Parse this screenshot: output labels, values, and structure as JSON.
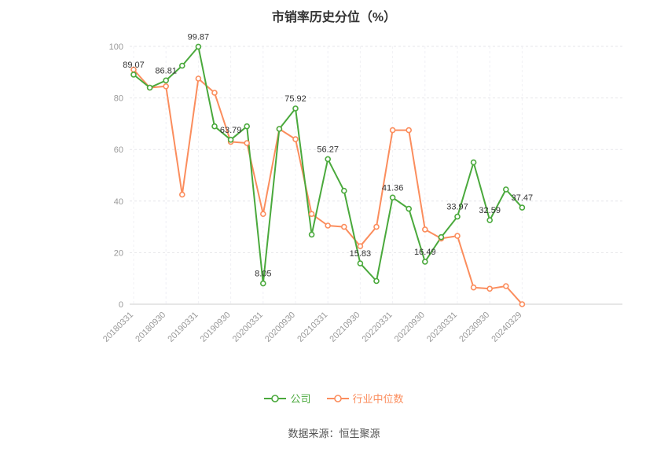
{
  "title": "市销率历史分位（%）",
  "footer": "数据来源：恒生聚源",
  "legend": {
    "items": [
      {
        "id": "company",
        "label": "公司",
        "color": "#4aa93c"
      },
      {
        "id": "industry-median",
        "label": "行业中位数",
        "color": "#fb8d5d"
      }
    ]
  },
  "chart_data": {
    "type": "line",
    "title": "市销率历史分位（%）",
    "xlabel": "",
    "ylabel": "",
    "ylim": [
      0,
      100
    ],
    "y_ticks": [
      0,
      20,
      40,
      60,
      80,
      100
    ],
    "grid": true,
    "legend_position": "bottom",
    "x_tick_labels": [
      "20180331",
      "20180930",
      "20190331",
      "20190930",
      "20200331",
      "20200930",
      "20210331",
      "20210930",
      "20220331",
      "20220930",
      "20230331",
      "20230930",
      "20240329"
    ],
    "points_per_tick": 2,
    "series": [
      {
        "name": "公司",
        "color": "#4aa93c",
        "values": [
          89.07,
          84,
          86.81,
          92.5,
          99.87,
          69,
          63.79,
          69,
          8.05,
          68,
          75.92,
          27,
          56.27,
          44,
          15.83,
          9,
          41.36,
          37,
          16.49,
          26,
          33.97,
          55,
          32.59,
          44.5,
          37.47
        ],
        "labeled_indices": [
          0,
          2,
          4,
          6,
          8,
          10,
          12,
          14,
          16,
          18,
          20,
          22,
          24
        ],
        "labels": [
          "89.07",
          "86.81",
          "99.87",
          "63.79",
          "8.05",
          "75.92",
          "56.27",
          "15.83",
          "41.36",
          "16.49",
          "33.97",
          "32.59",
          "37.47"
        ]
      },
      {
        "name": "行业中位数",
        "color": "#fb8d5d",
        "values": [
          91,
          84,
          84.5,
          42.5,
          87.5,
          82,
          63,
          62.5,
          35,
          68,
          64,
          35,
          30.5,
          30,
          22.5,
          30,
          67.5,
          67.5,
          29,
          25.5,
          26.5,
          6.5,
          6,
          7,
          0
        ],
        "labeled_indices": [],
        "labels": []
      }
    ]
  }
}
